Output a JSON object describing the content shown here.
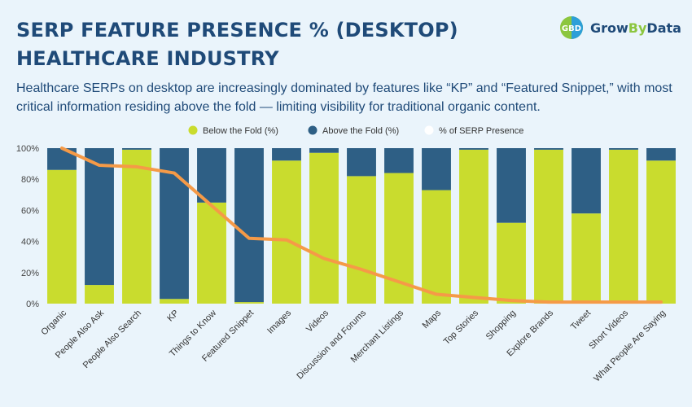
{
  "header": {
    "title_line1": "SERP FEATURE PRESENCE % (DESKTOP)",
    "title_line2": "HEALTHCARE INDUSTRY",
    "subtitle": "Healthcare SERPs on desktop are increasingly dominated by features like “KP” and “Featured Snippet,” with most critical information residing above the fold — limiting visibility for traditional organic content."
  },
  "logo": {
    "mark_text": "GBD",
    "name_part1": "Grow",
    "name_part2": "By",
    "name_part3": "Data"
  },
  "colors": {
    "below": "#c9dc2e",
    "above": "#2e5f85",
    "line": "#f59a47",
    "title": "#1f4a78",
    "logo_green": "#8cc63f",
    "logo_blue": "#2d9fd8"
  },
  "chart_data": {
    "type": "bar",
    "stacked": true,
    "categories": [
      "Organic",
      "People Also Ask",
      "People Also Search",
      "KP",
      "Things to Know",
      "Featured Snippet",
      "Images",
      "Videos",
      "Discussion and Forums",
      "Merchant Listings",
      "Maps",
      "Top Stories",
      "Shopping",
      "Explore Brands",
      "Tweet",
      "Short Videos",
      "What People Are Saying"
    ],
    "series": [
      {
        "name": "Below the Fold (%)",
        "kind": "bar",
        "values": [
          86,
          12,
          99,
          3,
          65,
          1,
          92,
          97,
          82,
          84,
          73,
          99,
          52,
          99,
          58,
          99,
          92
        ]
      },
      {
        "name": "Above the Fold (%)",
        "kind": "bar",
        "values": [
          14,
          88,
          1,
          97,
          35,
          99,
          8,
          3,
          18,
          16,
          27,
          1,
          48,
          1,
          42,
          1,
          8
        ]
      },
      {
        "name": "% of SERP Presence",
        "kind": "line",
        "values": [
          100,
          89,
          88,
          84,
          63,
          42,
          41,
          29,
          22,
          14,
          6,
          4,
          2,
          1,
          1,
          1,
          1
        ]
      }
    ],
    "y_ticks": [
      "0%",
      "20%",
      "40%",
      "60%",
      "80%",
      "100%"
    ],
    "ylim": [
      0,
      100
    ],
    "legend_position": "top-center",
    "grid": false
  }
}
